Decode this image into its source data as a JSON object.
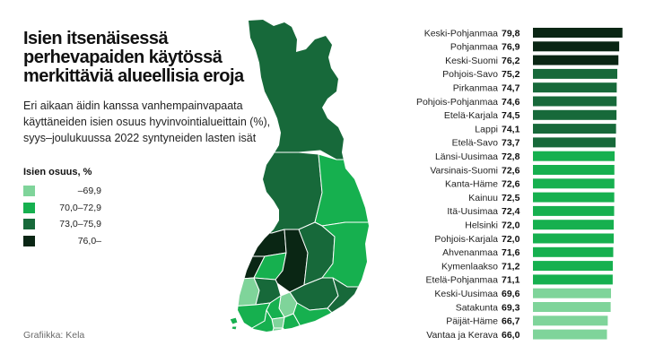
{
  "title": "Isien itsenäisessä perhevapaiden käytössä merkittäviä alueellisia eroja",
  "subtitle": "Eri aikaan äidin kanssa vanhempainvapaata käyttäneiden isien osuus hyvinvointialueittain (%), syys–joulukuussa 2022 syntyneiden lasten isät",
  "credit": "Grafiikka: Kela",
  "legend": {
    "title": "Isien osuus, %",
    "items": [
      {
        "label": "–69,9",
        "color": "#7fd49a"
      },
      {
        "label": "70,0–72,9",
        "color": "#16b04f"
      },
      {
        "label": "73,0–75,9",
        "color": "#17693a"
      },
      {
        "label": "76,0–",
        "color": "#0a2614"
      }
    ]
  },
  "colors": {
    "c1": "#7fd49a",
    "c2": "#16b04f",
    "c3": "#17693a",
    "c4": "#0a2614",
    "map_border": "#ffffff"
  },
  "chart_data": {
    "type": "bar",
    "orientation": "horizontal",
    "categories": [
      "Keski-Pohjanmaa",
      "Pohjanmaa",
      "Keski-Suomi",
      "Pohjois-Savo",
      "Pirkanmaa",
      "Pohjois-Pohjanmaa",
      "Etelä-Karjala",
      "Lappi",
      "Etelä-Savo",
      "Länsi-Uusimaa",
      "Varsinais-Suomi",
      "Kanta-Häme",
      "Kainuu",
      "Itä-Uusimaa",
      "Helsinki",
      "Pohjois-Karjala",
      "Ahvenanmaa",
      "Kymenlaakso",
      "Etelä-Pohjanmaa",
      "Keski-Uusimaa",
      "Satakunta",
      "Päijät-Häme",
      "Vantaa ja Kerava"
    ],
    "values": [
      79.8,
      76.9,
      76.2,
      75.2,
      74.7,
      74.6,
      74.5,
      74.1,
      73.7,
      72.8,
      72.6,
      72.6,
      72.5,
      72.4,
      72.0,
      72.0,
      71.6,
      71.2,
      71.1,
      69.6,
      69.3,
      66.7,
      66.0
    ],
    "value_labels": [
      "79,8",
      "76,9",
      "76,2",
      "75,2",
      "74,7",
      "74,6",
      "74,5",
      "74,1",
      "73,7",
      "72,8",
      "72,6",
      "72,6",
      "72,5",
      "72,4",
      "72,0",
      "72,0",
      "71,6",
      "71,2",
      "71,1",
      "69,6",
      "69,3",
      "66,7",
      "66,0"
    ],
    "class_breaks": [
      70.0,
      73.0,
      76.0
    ],
    "xlim": [
      0,
      80
    ]
  }
}
